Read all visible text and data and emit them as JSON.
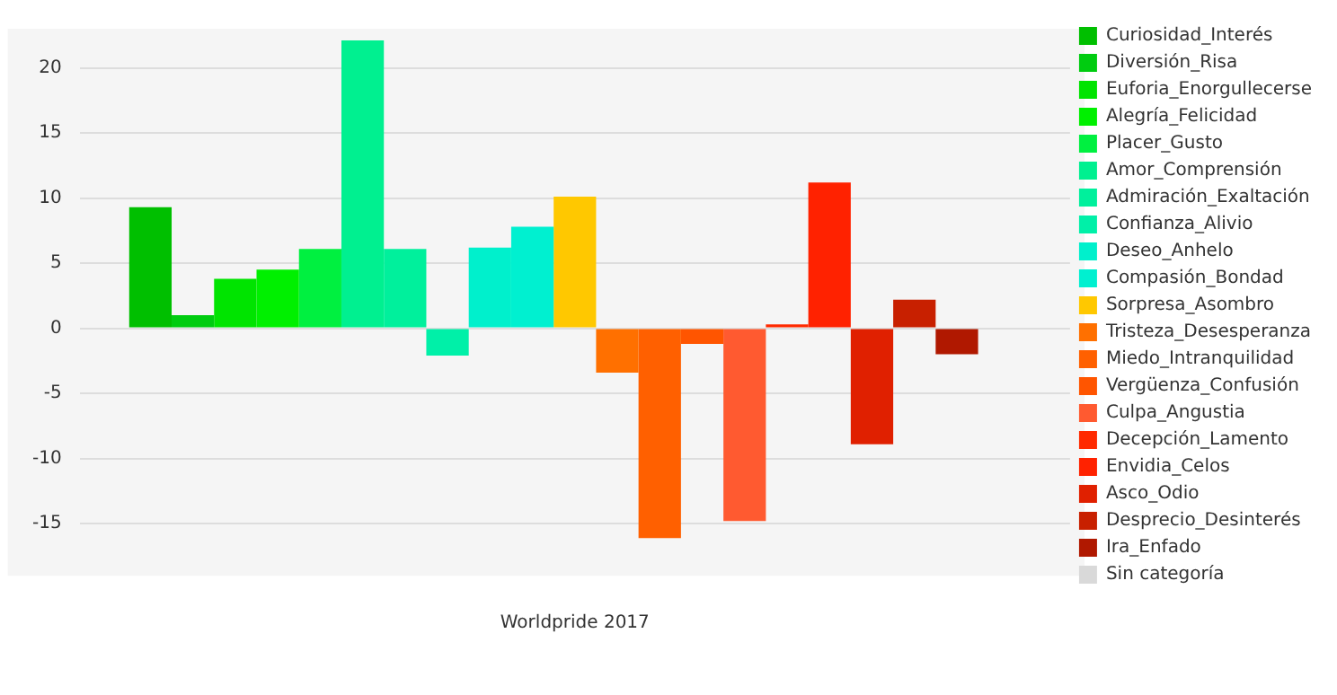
{
  "chart_data": {
    "type": "bar",
    "xlabel": "Worldpride 2017",
    "categories": [
      null
    ],
    "series": [
      {
        "name": "Curiosidad_Interés",
        "color": "#00bf00",
        "values": [
          9.3
        ]
      },
      {
        "name": "Diversión_Risa",
        "color": "#00cc10",
        "values": [
          1.0
        ]
      },
      {
        "name": "Euforia_Enorgullecerse",
        "color": "#00e400",
        "values": [
          3.8
        ]
      },
      {
        "name": "Alegría_Felicidad",
        "color": "#00f000",
        "values": [
          4.5
        ]
      },
      {
        "name": "Placer_Gusto",
        "color": "#00f040",
        "values": [
          6.1
        ]
      },
      {
        "name": "Amor_Comprensión",
        "color": "#00f090",
        "values": [
          22.1
        ]
      },
      {
        "name": "Admiración_Exaltación",
        "color": "#00f09c",
        "values": [
          6.1
        ]
      },
      {
        "name": "Confianza_Alivio",
        "color": "#00f0a8",
        "values": [
          -2.1
        ]
      },
      {
        "name": "Deseo_Anhelo",
        "color": "#00f0cc",
        "values": [
          6.2
        ]
      },
      {
        "name": "Compasión_Bondad",
        "color": "#00f0d0",
        "values": [
          7.8
        ]
      },
      {
        "name": "Sorpresa_Asombro",
        "color": "#ffc800",
        "values": [
          10.1
        ]
      },
      {
        "name": "Tristeza_Desesperanza",
        "color": "#ff7000",
        "values": [
          -3.4
        ]
      },
      {
        "name": "Miedo_Intranquilidad",
        "color": "#ff6000",
        "values": [
          -16.1
        ]
      },
      {
        "name": "Vergüenza_Confusión",
        "color": "#ff5500",
        "values": [
          -1.2
        ]
      },
      {
        "name": "Culpa_Angustia",
        "color": "#ff5a30",
        "values": [
          -14.8
        ]
      },
      {
        "name": "Decepción_Lamento",
        "color": "#ff2a00",
        "values": [
          0.3
        ]
      },
      {
        "name": "Envidia_Celos",
        "color": "#ff2200",
        "values": [
          11.2
        ]
      },
      {
        "name": "Asco_Odio",
        "color": "#e02000",
        "values": [
          -8.9
        ]
      },
      {
        "name": "Desprecio_Desinterés",
        "color": "#c82000",
        "values": [
          2.2
        ]
      },
      {
        "name": "Ira_Enfado",
        "color": "#b01800",
        "values": [
          -2.0
        ]
      },
      {
        "name": "Sin categoría",
        "color": "#d9d9d9",
        "values": [
          0
        ]
      }
    ],
    "ylim": [
      -19,
      23
    ],
    "yticks": [
      -15,
      -10,
      -5,
      0,
      5,
      10,
      15,
      20
    ],
    "grid": "y",
    "legend": "right"
  }
}
